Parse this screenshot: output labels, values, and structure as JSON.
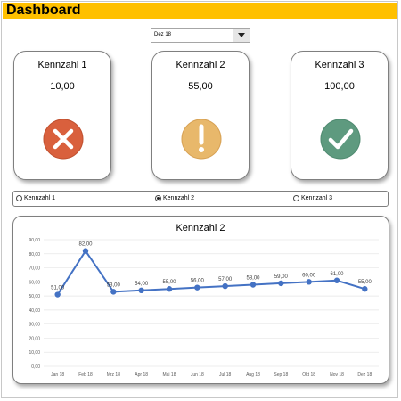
{
  "dashboard": {
    "title": "Dashboard",
    "month_select": {
      "selected": "Dez 18"
    }
  },
  "kpis": [
    {
      "title": "Kennzahl  1",
      "value": "10,00",
      "status": "bad",
      "icon": "x-circle-icon",
      "color": "#d9603d"
    },
    {
      "title": "Kennzahl  2",
      "value": "55,00",
      "status": "warning",
      "icon": "exclamation-circle-icon",
      "color": "#e8b86b"
    },
    {
      "title": "Kennzahl  3",
      "value": "100,00",
      "status": "good",
      "icon": "check-circle-icon",
      "color": "#5e9a7f"
    }
  ],
  "selector": {
    "options": [
      "Kennzahl 1",
      "Kennzahl 2",
      "Kennzahl 3"
    ],
    "selected_index": 1
  },
  "chart_data": {
    "type": "line",
    "title": "Kennzahl  2",
    "categories": [
      "Jan 18",
      "Feb 18",
      "Mrz 18",
      "Apr 18",
      "Mai 18",
      "Jun 18",
      "Jul 18",
      "Aug 18",
      "Sep 18",
      "Okt 18",
      "Nov 18",
      "Dez 18"
    ],
    "values": [
      51,
      82,
      53,
      54,
      55,
      56,
      57,
      58,
      59,
      60,
      61,
      55
    ],
    "data_labels": [
      "51,00",
      "82,00",
      "53,00",
      "54,00",
      "55,00",
      "56,00",
      "57,00",
      "58,00",
      "59,00",
      "60,00",
      "61,00",
      "55,00"
    ],
    "yticks": [
      "0,00",
      "10,00",
      "20,00",
      "30,00",
      "40,00",
      "50,00",
      "60,00",
      "70,00",
      "80,00",
      "90,00"
    ],
    "ylim": [
      0,
      90
    ],
    "grid": true,
    "line_color": "#4472c4"
  }
}
